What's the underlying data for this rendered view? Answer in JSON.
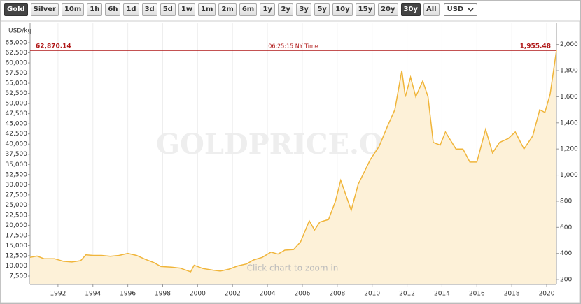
{
  "toolbar": {
    "buttons": [
      "Gold",
      "Silver",
      "10m",
      "1h",
      "6h",
      "1d",
      "3d",
      "5d",
      "1w",
      "1m",
      "2m",
      "6m",
      "1y",
      "2y",
      "3y",
      "5y",
      "10y",
      "15y",
      "20y",
      "30y",
      "All"
    ],
    "active": [
      "Gold",
      "30y"
    ],
    "currency": "USD"
  },
  "chart_data": {
    "type": "area",
    "ylabel": "USD/kg",
    "watermark": "GOLDPRICE.ORG",
    "hint": "Click chart to zoom in",
    "time_label": "06:25:15 NY Time",
    "current": {
      "value": 1955.48,
      "label": "1,955.48"
    },
    "current_kg": {
      "value": 62870.14,
      "label": "62,870.14"
    },
    "current_color": "#b01818",
    "xlim": [
      1990.4,
      2020.56
    ],
    "xticks": [
      1992,
      1994,
      1996,
      1998,
      2000,
      2002,
      2004,
      2006,
      2008,
      2010,
      2012,
      2014,
      2016,
      2018,
      2020
    ],
    "ylim": [
      5434,
      69820
    ],
    "yticks": [
      {
        "value": 7500,
        "label": "7,500"
      },
      {
        "value": 10000,
        "label": "10,000"
      },
      {
        "value": 12500,
        "label": "12,500"
      },
      {
        "value": 15000,
        "label": "15,000"
      },
      {
        "value": 17500,
        "label": "17,500"
      },
      {
        "value": 20000,
        "label": "20,000"
      },
      {
        "value": 22500,
        "label": "22,500"
      },
      {
        "value": 25000,
        "label": "25,000"
      },
      {
        "value": 27500,
        "label": "27,500"
      },
      {
        "value": 30000,
        "label": "30,000"
      },
      {
        "value": 32500,
        "label": "32,500"
      },
      {
        "value": 35000,
        "label": "35,000"
      },
      {
        "value": 37500,
        "label": "37,500"
      },
      {
        "value": 40000,
        "label": "40,000"
      },
      {
        "value": 42500,
        "label": "42,500"
      },
      {
        "value": 45000,
        "label": "45,000"
      },
      {
        "value": 47500,
        "label": "47,500"
      },
      {
        "value": 50000,
        "label": "50,000"
      },
      {
        "value": 52500,
        "label": "52,500"
      },
      {
        "value": 55000,
        "label": "55,000"
      },
      {
        "value": 57500,
        "label": "57,500"
      },
      {
        "value": 60000,
        "label": "60,000"
      },
      {
        "value": 62500,
        "label": "62,500"
      },
      {
        "value": 65000,
        "label": "65,000"
      }
    ],
    "y2lim": [
      163,
      2164
    ],
    "y2ticks": [
      200,
      400,
      600,
      800,
      {
        "value": 1000,
        "label": "1,000"
      },
      {
        "value": 1200,
        "label": "1,200"
      },
      {
        "value": 1400,
        "label": "1,400"
      },
      {
        "value": 1600,
        "label": "1,600"
      },
      {
        "value": 1800,
        "label": "1,800"
      },
      {
        "value": 2000,
        "label": "2,000"
      }
    ],
    "grid": true,
    "x": [
      1990.4,
      1990.8,
      1991.2,
      1991.8,
      1992.3,
      1992.8,
      1993.3,
      1993.6,
      1994.0,
      1994.5,
      1995.0,
      1995.5,
      1996.0,
      1996.5,
      1997.0,
      1997.5,
      1997.9,
      1998.5,
      1999.0,
      1999.6,
      1999.8,
      2000.3,
      2000.9,
      2001.3,
      2001.8,
      2002.3,
      2002.8,
      2003.2,
      2003.7,
      2004.2,
      2004.6,
      2005.0,
      2005.5,
      2005.9,
      2006.4,
      2006.7,
      2007.0,
      2007.5,
      2007.9,
      2008.2,
      2008.8,
      2009.2,
      2009.9,
      2010.4,
      2010.9,
      2011.3,
      2011.7,
      2011.9,
      2012.2,
      2012.5,
      2012.9,
      2013.2,
      2013.5,
      2013.9,
      2014.2,
      2014.8,
      2015.2,
      2015.6,
      2016.0,
      2016.5,
      2016.9,
      2017.3,
      2017.8,
      2018.2,
      2018.7,
      2019.2,
      2019.6,
      2019.9,
      2020.2,
      2020.56
    ],
    "series": [
      {
        "axis": "y2",
        "color": "#f0b53a",
        "fill": "#fdf1d8",
        "values": [
          370,
          380,
          360,
          360,
          340,
          335,
          345,
          390,
          385,
          385,
          378,
          385,
          400,
          385,
          355,
          330,
          300,
          295,
          288,
          260,
          310,
          285,
          272,
          265,
          280,
          305,
          320,
          350,
          370,
          410,
          395,
          425,
          430,
          490,
          650,
          580,
          640,
          660,
          800,
          960,
          730,
          930,
          1120,
          1220,
          1380,
          1500,
          1800,
          1600,
          1750,
          1600,
          1720,
          1600,
          1250,
          1230,
          1330,
          1200,
          1200,
          1100,
          1100,
          1350,
          1170,
          1250,
          1280,
          1330,
          1200,
          1300,
          1500,
          1480,
          1620,
          1955.48
        ]
      }
    ]
  }
}
